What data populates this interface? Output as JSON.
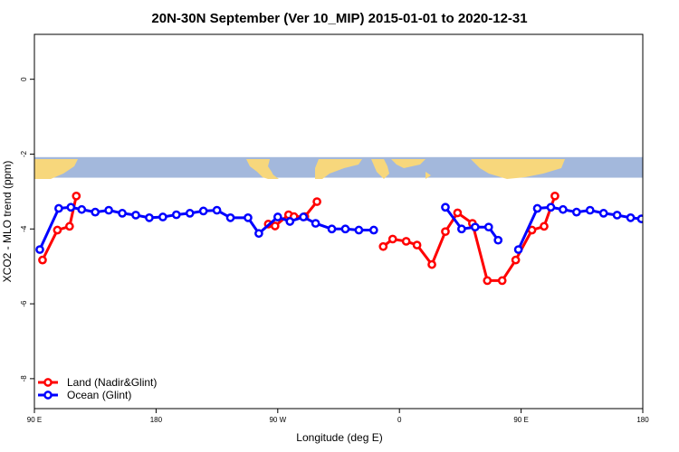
{
  "chart_data": {
    "type": "line",
    "title": "20N-30N September (Ver 10_MIP)   2015-01-01 to 2020-12-31",
    "xlabel": "Longitude (deg E)",
    "ylabel": "XCO2 - MLO trend (ppm)",
    "ylim": [
      -8.8,
      1.2
    ],
    "xlim": [
      90,
      540
    ],
    "x_ticks": [
      {
        "value": 90,
        "label": "90 E"
      },
      {
        "value": 180,
        "label": "180"
      },
      {
        "value": 270,
        "label": "90 W"
      },
      {
        "value": 360,
        "label": "0"
      },
      {
        "value": 450,
        "label": "90 E"
      },
      {
        "value": 540,
        "label": "180"
      }
    ],
    "y_ticks": [
      {
        "value": 0,
        "label": "0"
      },
      {
        "value": -2,
        "label": "-2"
      },
      {
        "value": -4,
        "label": "-4"
      },
      {
        "value": -6,
        "label": "-6"
      },
      {
        "value": -8,
        "label": "-8"
      }
    ],
    "legend_position": "bottom-left",
    "map_strip": {
      "y_top": -2.08,
      "y_bottom": -2.63,
      "ocean_color": "#a3b8dc",
      "land_color": "#f7d77c"
    },
    "series": [
      {
        "name": "Land (Nadir&Glint)",
        "color": "#ff0000",
        "segments": [
          [
            [
              96,
              -4.83
            ],
            [
              107,
              -4.03
            ],
            [
              116,
              -3.93
            ],
            [
              121,
              -3.12
            ]
          ],
          [
            [
              263,
              -3.87
            ],
            [
              268,
              -3.92
            ],
            [
              278,
              -3.62
            ],
            [
              282,
              -3.67
            ],
            [
              290,
              -3.67
            ],
            [
              299,
              -3.27
            ]
          ],
          [
            [
              348,
              -4.47
            ],
            [
              355,
              -4.27
            ],
            [
              365,
              -4.33
            ],
            [
              373,
              -4.43
            ],
            [
              384,
              -4.95
            ],
            [
              394,
              -4.07
            ],
            [
              403,
              -3.57
            ],
            [
              414,
              -3.85
            ],
            [
              425,
              -5.38
            ],
            [
              436,
              -5.38
            ],
            [
              446,
              -4.83
            ],
            [
              458,
              -4.03
            ],
            [
              467,
              -3.93
            ],
            [
              475,
              -3.12
            ]
          ]
        ]
      },
      {
        "name": "Ocean (Glint)",
        "color": "#0000ff",
        "segments": [
          [
            [
              94,
              -4.55
            ],
            [
              108,
              -3.45
            ],
            [
              117,
              -3.42
            ],
            [
              125,
              -3.48
            ],
            [
              135,
              -3.55
            ],
            [
              145,
              -3.5
            ],
            [
              155,
              -3.58
            ],
            [
              165,
              -3.63
            ],
            [
              175,
              -3.7
            ],
            [
              185,
              -3.68
            ],
            [
              195,
              -3.62
            ],
            [
              205,
              -3.58
            ],
            [
              215,
              -3.52
            ],
            [
              225,
              -3.5
            ],
            [
              235,
              -3.7
            ],
            [
              248,
              -3.7
            ],
            [
              256,
              -4.12
            ],
            [
              270,
              -3.68
            ],
            [
              279,
              -3.8
            ],
            [
              289,
              -3.68
            ],
            [
              298,
              -3.85
            ],
            [
              310,
              -4.0
            ],
            [
              320,
              -4.0
            ],
            [
              330,
              -4.03
            ],
            [
              341,
              -4.03
            ]
          ],
          [
            [
              394,
              -3.42
            ],
            [
              406,
              -4.0
            ],
            [
              416,
              -3.95
            ],
            [
              426,
              -3.95
            ],
            [
              433,
              -4.3
            ]
          ],
          [
            [
              448,
              -4.55
            ],
            [
              462,
              -3.45
            ],
            [
              472,
              -3.42
            ],
            [
              481,
              -3.48
            ],
            [
              491,
              -3.55
            ],
            [
              501,
              -3.5
            ],
            [
              511,
              -3.58
            ],
            [
              521,
              -3.63
            ],
            [
              531,
              -3.7
            ],
            [
              539,
              -3.73
            ]
          ]
        ]
      }
    ]
  }
}
